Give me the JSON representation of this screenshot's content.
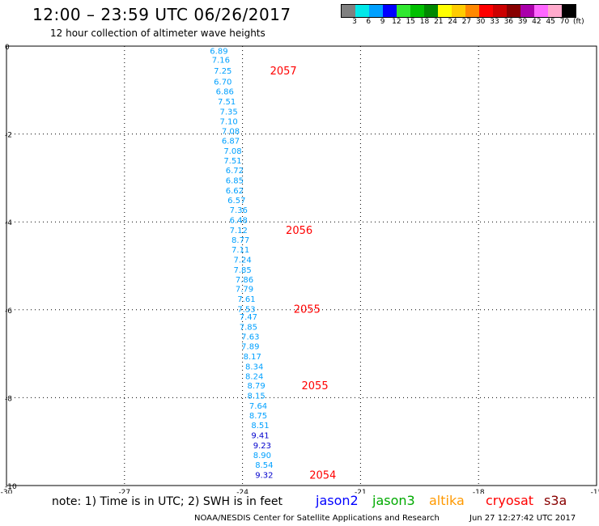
{
  "header": {
    "title": "12:00 – 23:59 UTC 06/26/2017",
    "subtitle": "12 hour collection of altimeter wave heights"
  },
  "legend": {
    "colors": [
      "#808080",
      "#00e8e8",
      "#00a0ff",
      "#0000ff",
      "#30e830",
      "#00c000",
      "#008800",
      "#ffff00",
      "#ffcc00",
      "#ff8800",
      "#ff0000",
      "#cc0000",
      "#880000",
      "#aa00aa",
      "#ff66ff",
      "#ffaacc",
      "#000000"
    ],
    "labels": [
      "3",
      "6",
      "9",
      "12",
      "15",
      "18",
      "21",
      "24",
      "27",
      "30",
      "33",
      "36",
      "39",
      "42",
      "45",
      "70",
      "(ft)"
    ]
  },
  "footer": {
    "note": "note: 1) Time is in UTC; 2) SWH is in feet",
    "satellites": [
      {
        "name": "jason2",
        "color": "#0000ff"
      },
      {
        "name": "jason3",
        "color": "#00aa00"
      },
      {
        "name": "altika",
        "color": "#ff9900"
      },
      {
        "name": "cryosat",
        "color": "#ff0000"
      },
      {
        "name": "s3a",
        "color": "#880000"
      }
    ],
    "credit": "NOAA/NESDIS Center for Satellite Applications and Research",
    "timestamp": "Jun 27 12:27:42 UTC 2017"
  },
  "chart_data": {
    "type": "scatter",
    "xlim": [
      -30,
      -15
    ],
    "ylim": [
      -10,
      0
    ],
    "x_ticks": [
      -30,
      -27,
      -24,
      -21,
      -18,
      -15
    ],
    "y_ticks": [
      0,
      -2,
      -4,
      -6,
      -8,
      -10
    ],
    "grid": true,
    "colors": {
      "light_blue": "#00a0ff",
      "dark_blue": "#0000cc",
      "time_label": "#ff0000"
    },
    "points": [
      {
        "x": -24.6,
        "y": -0.1,
        "v": "6.89",
        "c": "light_blue"
      },
      {
        "x": -24.55,
        "y": -0.3,
        "v": "7.16",
        "c": "light_blue"
      },
      {
        "x": -24.5,
        "y": -0.55,
        "v": "7.25",
        "c": "light_blue"
      },
      {
        "x": -24.5,
        "y": -0.8,
        "v": "6.70",
        "c": "light_blue"
      },
      {
        "x": -24.45,
        "y": -1.02,
        "v": "6.86",
        "c": "light_blue"
      },
      {
        "x": -24.4,
        "y": -1.25,
        "v": "7.51",
        "c": "light_blue"
      },
      {
        "x": -24.35,
        "y": -1.48,
        "v": "7.35",
        "c": "light_blue"
      },
      {
        "x": -24.35,
        "y": -1.7,
        "v": "7.10",
        "c": "light_blue"
      },
      {
        "x": -24.3,
        "y": -1.92,
        "v": "7.08",
        "c": "light_blue"
      },
      {
        "x": -24.3,
        "y": -2.15,
        "v": "6.87",
        "c": "light_blue"
      },
      {
        "x": -24.25,
        "y": -2.38,
        "v": "7.08",
        "c": "light_blue"
      },
      {
        "x": -24.25,
        "y": -2.6,
        "v": "7.51",
        "c": "light_blue"
      },
      {
        "x": -24.2,
        "y": -2.82,
        "v": "6.72",
        "c": "light_blue"
      },
      {
        "x": -24.2,
        "y": -3.05,
        "v": "6.85",
        "c": "light_blue"
      },
      {
        "x": -24.2,
        "y": -3.28,
        "v": "6.62",
        "c": "light_blue"
      },
      {
        "x": -24.15,
        "y": -3.5,
        "v": "6.57",
        "c": "light_blue"
      },
      {
        "x": -24.1,
        "y": -3.72,
        "v": "7.36",
        "c": "light_blue"
      },
      {
        "x": -24.1,
        "y": -3.95,
        "v": "6.48",
        "c": "light_blue"
      },
      {
        "x": -24.1,
        "y": -4.18,
        "v": "7.12",
        "c": "light_blue"
      },
      {
        "x": -24.05,
        "y": -4.4,
        "v": "8.77",
        "c": "light_blue"
      },
      {
        "x": -24.05,
        "y": -4.62,
        "v": "7.11",
        "c": "light_blue"
      },
      {
        "x": -24.0,
        "y": -4.85,
        "v": "7.24",
        "c": "light_blue"
      },
      {
        "x": -24.0,
        "y": -5.08,
        "v": "7.85",
        "c": "light_blue"
      },
      {
        "x": -23.95,
        "y": -5.3,
        "v": "7.86",
        "c": "light_blue"
      },
      {
        "x": -23.95,
        "y": -5.52,
        "v": "7.79",
        "c": "light_blue"
      },
      {
        "x": -23.9,
        "y": -5.75,
        "v": "7.61",
        "c": "light_blue"
      },
      {
        "x": -23.9,
        "y": -5.98,
        "v": "7.53",
        "c": "light_blue"
      },
      {
        "x": -23.85,
        "y": -6.15,
        "v": "7.47",
        "c": "light_blue"
      },
      {
        "x": -23.85,
        "y": -6.38,
        "v": "7.85",
        "c": "light_blue"
      },
      {
        "x": -23.8,
        "y": -6.6,
        "v": "7.63",
        "c": "light_blue"
      },
      {
        "x": -23.8,
        "y": -6.82,
        "v": "7.89",
        "c": "light_blue"
      },
      {
        "x": -23.75,
        "y": -7.05,
        "v": "8.17",
        "c": "light_blue"
      },
      {
        "x": -23.7,
        "y": -7.28,
        "v": "8.34",
        "c": "light_blue"
      },
      {
        "x": -23.7,
        "y": -7.5,
        "v": "8.24",
        "c": "light_blue"
      },
      {
        "x": -23.65,
        "y": -7.72,
        "v": "8.79",
        "c": "light_blue"
      },
      {
        "x": -23.65,
        "y": -7.95,
        "v": "8.15",
        "c": "light_blue"
      },
      {
        "x": -23.6,
        "y": -8.18,
        "v": "7.64",
        "c": "light_blue"
      },
      {
        "x": -23.6,
        "y": -8.4,
        "v": "8.75",
        "c": "light_blue"
      },
      {
        "x": -23.55,
        "y": -8.62,
        "v": "8.51",
        "c": "light_blue"
      },
      {
        "x": -23.55,
        "y": -8.85,
        "v": "9.41",
        "c": "dark_blue"
      },
      {
        "x": -23.5,
        "y": -9.08,
        "v": "9.23",
        "c": "dark_blue"
      },
      {
        "x": -23.5,
        "y": -9.3,
        "v": "8.90",
        "c": "light_blue"
      },
      {
        "x": -23.45,
        "y": -9.52,
        "v": "8.54",
        "c": "light_blue"
      },
      {
        "x": -23.45,
        "y": -9.75,
        "v": "9.32",
        "c": "dark_blue"
      }
    ],
    "time_labels": [
      {
        "x": -23.3,
        "y": -0.55,
        "v": "2057"
      },
      {
        "x": -22.9,
        "y": -4.18,
        "v": "2056"
      },
      {
        "x": -22.7,
        "y": -5.98,
        "v": "2055"
      },
      {
        "x": -22.5,
        "y": -7.72,
        "v": "2055"
      },
      {
        "x": -22.3,
        "y": -9.75,
        "v": "2054"
      }
    ]
  }
}
